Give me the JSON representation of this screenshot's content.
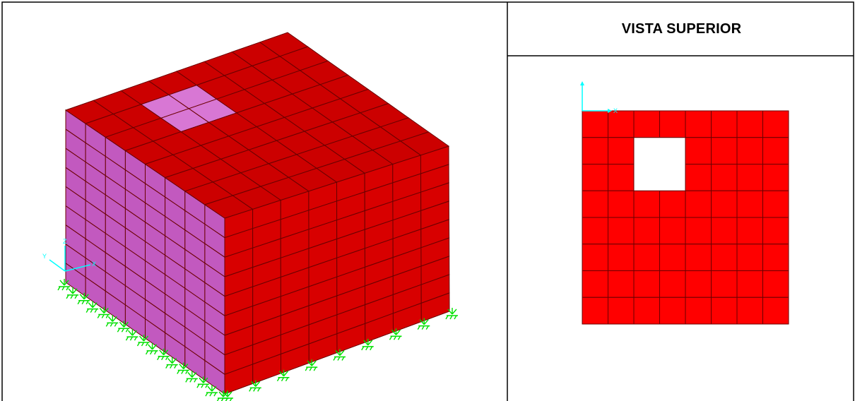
{
  "layout_table": {
    "right_header": "VISTA SUPERIOR"
  },
  "iso_view": {
    "axis_labels": {
      "x": "X",
      "y": "Y",
      "z": "Z"
    },
    "grid": {
      "side_cols": 8,
      "rows": 9,
      "front_cols": 8,
      "top_cols": 8,
      "top_rows": 8
    },
    "opening": {
      "col": 2,
      "row": 1,
      "size": 2
    }
  },
  "top_view": {
    "axis_labels": {
      "x": "X"
    },
    "grid": {
      "cols": 8,
      "rows": 8
    },
    "opening": {
      "col": 2,
      "row": 1,
      "size": 2
    }
  },
  "colors": {
    "top_face": "#cc0000",
    "front_face": "#d80000",
    "side_face": "#c259bf",
    "mesh_line": "#6a0000",
    "opening_fill": "#d877d4",
    "plan_fill": "#ff0000",
    "axis": "#00ffff",
    "support": "#00e000",
    "border": "#000000"
  }
}
